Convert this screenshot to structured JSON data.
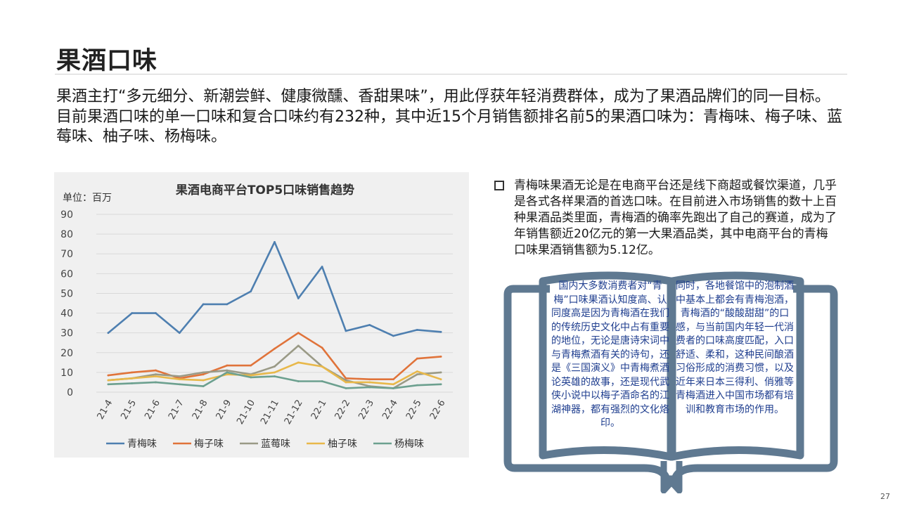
{
  "title": "果酒口味",
  "intro": "果酒主打“多元细分、新潮尝鲜、健康微醺、香甜果味”，用此俘获年轻消费群体，成为了果酒品牌们的同一目标。目前果酒口味的单一口味和复合口味约有232种，其中近15个月销售额排名前5的果酒口味为：青梅味、梅子味、蓝莓味、柚子味、杨梅味。",
  "bullet_text": "青梅味果酒无论是在电商平台还是线下商超或餐饮渠道，几乎是各式各样果酒的首选口味。在目前进入市场销售的数十上百种果酒品类里面，青梅酒的确率先跑出了自己的赛道，成为了年销售额近20亿元的第一大果酒品类，其中电商平台的青梅口味果酒销售额为5.12亿。",
  "book": {
    "left_page": "国内大多数消费者对“青梅”口味果酒认知度高、认同度高是因为青梅酒在我们的传统历史文化中占有重要的地位，无论是唐诗宋词中与青梅煮酒有关的诗句，还是《三国演义》中青梅煮酒论英雄的故事，还是现代武侠小说中以梅子酒命名的江湖神器，都有强烈的文化烙印。",
    "right_page": "同时，各地餐馆中的泡制酒中基本上都会有青梅泡酒，青梅酒的“酸酸甜甜”的口感，与当前国内年轻一代消费者的口味高度匹配，入口舒适、柔和，这种民间酿酒习俗形成的消费习惯，以及近年来日本三得利、俏雅等青梅酒进入中国市场都有培训和教育市场的作用。"
  },
  "page_number": "27",
  "colors": {
    "series": [
      "#4e7fb0",
      "#e0733a",
      "#9a9a86",
      "#e8b84a",
      "#6ca08f"
    ],
    "book": "#5f7991",
    "chart_bg": "#f0f0f0",
    "grid": "#d9d9d9"
  },
  "chart_data": {
    "type": "line",
    "title": "果酒电商平台TOP5口味销售趋势",
    "unit_label": "单位：百万",
    "categories": [
      "21-4",
      "21-5",
      "21-6",
      "21-7",
      "21-8",
      "21-9",
      "21-10",
      "21-11",
      "21-12",
      "22-1",
      "22-2",
      "22-3",
      "22-4",
      "22-5",
      "22-6"
    ],
    "ylim": [
      0,
      90
    ],
    "yticks": [
      0,
      10,
      20,
      30,
      40,
      50,
      60,
      70,
      80,
      90
    ],
    "grid": true,
    "legend_position": "bottom",
    "series": [
      {
        "name": "青梅味",
        "values": [
          30,
          40,
          40,
          30,
          44.5,
          44.5,
          51,
          76,
          47.5,
          63.5,
          31,
          34,
          28.5,
          31.5,
          30.5
        ]
      },
      {
        "name": "梅子味",
        "values": [
          8.5,
          10,
          11,
          7,
          9,
          13.5,
          13.5,
          22,
          30,
          22.5,
          7,
          6.5,
          6.5,
          17,
          18
        ]
      },
      {
        "name": "蓝莓味",
        "values": [
          6,
          7,
          9,
          8,
          10,
          11,
          9,
          13,
          23.5,
          13,
          6,
          3,
          2,
          9,
          10
        ]
      },
      {
        "name": "柚子味",
        "values": [
          6,
          7,
          8,
          6.5,
          6,
          9,
          8.5,
          10,
          15,
          13,
          5,
          5,
          4,
          10.5,
          6.5
        ]
      },
      {
        "name": "杨梅味",
        "values": [
          4,
          4.5,
          5,
          4,
          3,
          10,
          7.5,
          8,
          5.5,
          5.5,
          2,
          2.5,
          2,
          3.5,
          4
        ]
      }
    ]
  }
}
